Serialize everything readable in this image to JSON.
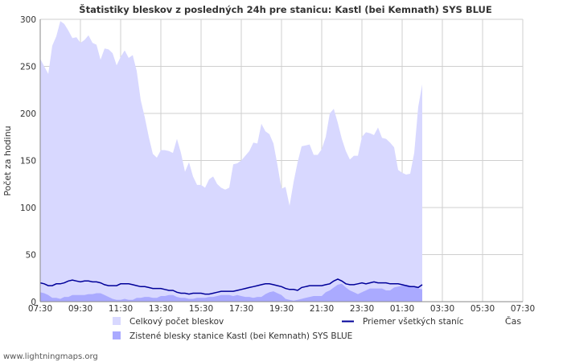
{
  "chart_data": {
    "type": "area",
    "title": "Štatistiky bleskov z posledných 24h pre stanicu: Kastl (bei Kemnath) SYS BLUE",
    "xlabel": "Čas",
    "ylabel": "Počet za hodinu",
    "ylim": [
      0,
      300
    ],
    "yticks": [
      "0",
      "50",
      "100",
      "150",
      "200",
      "250",
      "300"
    ],
    "xtick_labels": [
      "07:30",
      "09:30",
      "11:30",
      "13:30",
      "15:30",
      "17:30",
      "19:30",
      "21:30",
      "23:30",
      "01:30",
      "03:30",
      "05:30",
      "07:30"
    ],
    "grid": true,
    "x_range": [
      0,
      24
    ],
    "x_step_hours": 0.2,
    "series": [
      {
        "name": "Celkový počet bleskov",
        "style": "area",
        "color": "#d8d8ff",
        "values": [
          258,
          250,
          242,
          272,
          282,
          298,
          295,
          288,
          280,
          281,
          275,
          278,
          283,
          275,
          273,
          257,
          269,
          268,
          264,
          251,
          260,
          267,
          259,
          262,
          245,
          214,
          196,
          175,
          157,
          153,
          161,
          161,
          160,
          158,
          173,
          158,
          138,
          148,
          133,
          124,
          124,
          121,
          130,
          133,
          125,
          121,
          119,
          121,
          146,
          147,
          150,
          155,
          160,
          169,
          168,
          189,
          181,
          178,
          168,
          145,
          120,
          122,
          102,
          127,
          148,
          165,
          166,
          167,
          156,
          156,
          162,
          175,
          200,
          205,
          190,
          173,
          160,
          151,
          155,
          155,
          175,
          180,
          179,
          177,
          185,
          174,
          173,
          169,
          164,
          140,
          137,
          135,
          136,
          158,
          207,
          231
        ]
      },
      {
        "name": "Zistené blesky stanice Kastl (bei Kemnath) SYS BLUE",
        "style": "area",
        "color": "#aaaaff",
        "values": [
          10,
          9,
          7,
          4,
          4,
          3,
          5,
          5,
          7,
          7,
          7,
          7,
          8,
          8,
          9,
          9,
          7,
          5,
          3,
          2,
          2,
          3,
          2,
          2,
          4,
          4,
          5,
          5,
          4,
          4,
          6,
          6,
          7,
          7,
          5,
          4,
          4,
          3,
          3,
          4,
          4,
          4,
          5,
          5,
          6,
          7,
          7,
          7,
          6,
          7,
          6,
          5,
          5,
          4,
          5,
          5,
          8,
          10,
          11,
          9,
          7,
          3,
          2,
          1,
          2,
          3,
          4,
          5,
          6,
          6,
          6,
          10,
          12,
          15,
          18,
          19,
          15,
          12,
          10,
          8,
          10,
          12,
          14,
          14,
          14,
          14,
          12,
          12,
          15,
          16,
          17,
          18,
          17,
          16,
          14,
          13
        ]
      },
      {
        "name": "Priemer všetkých staníc",
        "style": "line",
        "color": "#000099",
        "values": [
          20,
          19,
          17,
          17,
          19,
          19,
          20,
          22,
          23,
          22,
          21,
          22,
          22,
          21,
          21,
          20,
          18,
          17,
          17,
          17,
          19,
          19,
          19,
          18,
          17,
          16,
          16,
          15,
          14,
          14,
          14,
          13,
          12,
          12,
          10,
          9,
          9,
          8,
          9,
          9,
          9,
          8,
          8,
          9,
          10,
          11,
          11,
          11,
          11,
          12,
          13,
          14,
          15,
          16,
          17,
          18,
          19,
          19,
          18,
          17,
          16,
          14,
          13,
          13,
          12,
          15,
          16,
          17,
          17,
          17,
          17,
          18,
          19,
          22,
          24,
          22,
          19,
          18,
          18,
          19,
          20,
          19,
          20,
          21,
          20,
          20,
          20,
          19,
          19,
          19,
          18,
          17,
          16,
          16,
          15,
          18
        ]
      }
    ],
    "legend": [
      {
        "label": "Celkový počet bleskov",
        "kind": "swatch",
        "color": "#d8d8ff"
      },
      {
        "label": "Priemer všetkých staníc",
        "kind": "line",
        "color": "#000099"
      },
      {
        "label": "Zistené blesky stanice Kastl (bei Kemnath) SYS BLUE",
        "kind": "swatch",
        "color": "#aaaaff"
      }
    ],
    "legend_position": "bottom"
  },
  "credit": "www.lightningmaps.org"
}
